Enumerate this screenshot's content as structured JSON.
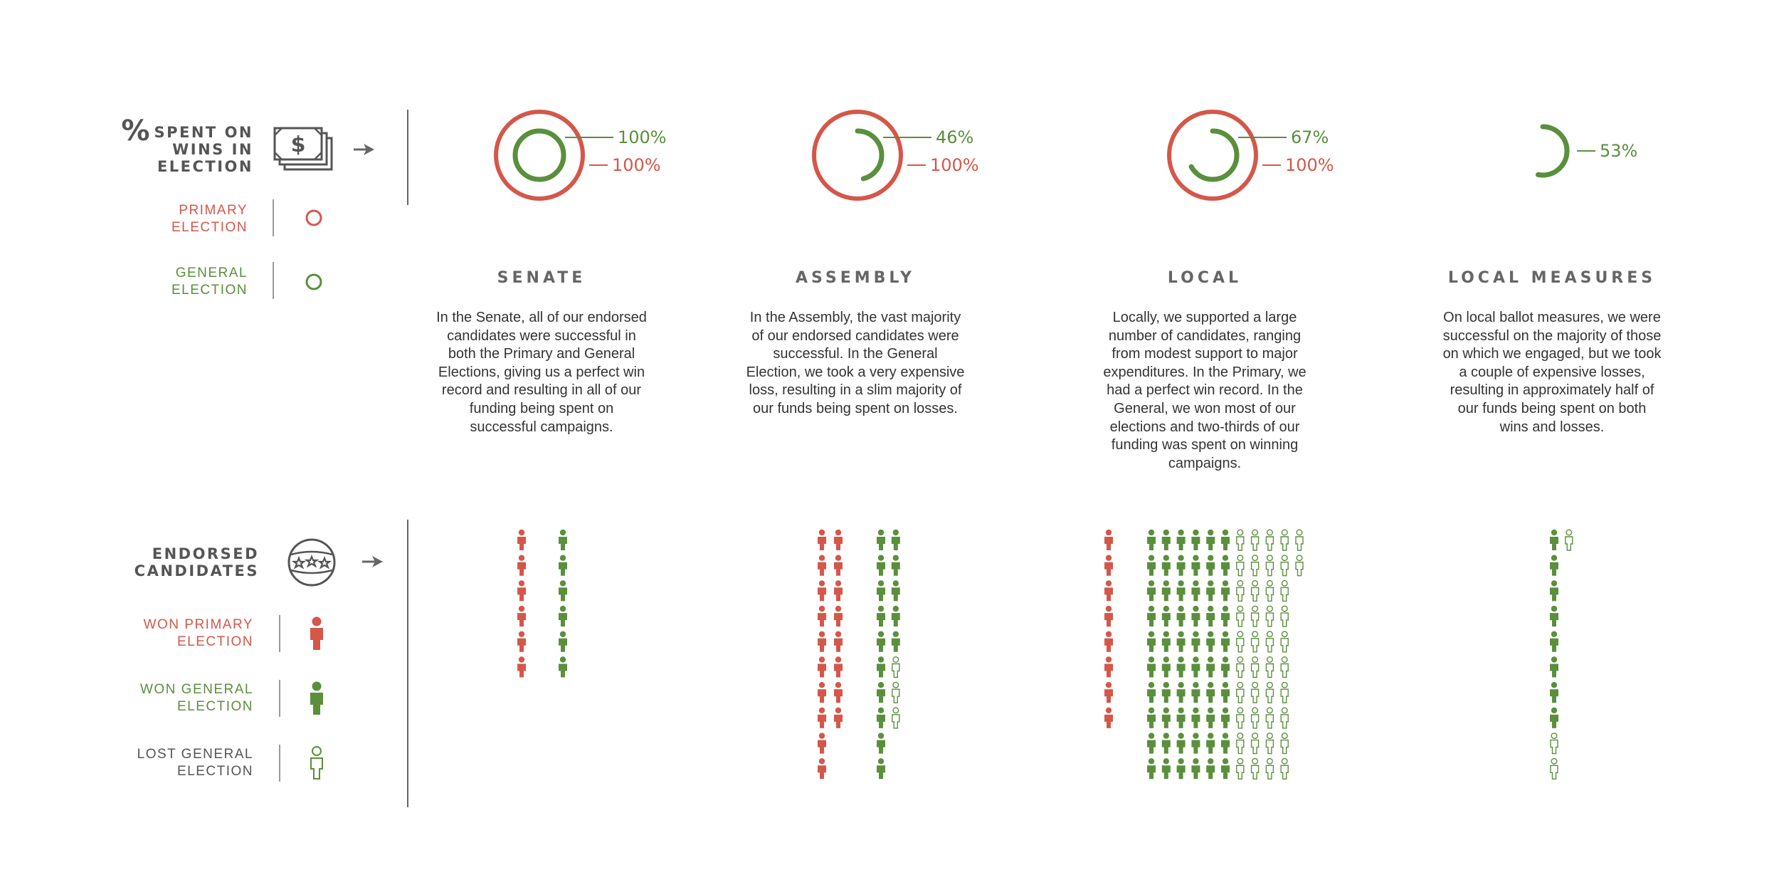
{
  "legend": {
    "spent_heading": [
      "SPENT ON",
      "WINS IN",
      "ELECTION"
    ],
    "spent_symbol": "%",
    "primary_election": [
      "PRIMARY",
      "ELECTION"
    ],
    "general_election": [
      "GENERAL",
      "ELECTION"
    ],
    "endorsed_heading": [
      "ENDORSED",
      "CANDIDATES"
    ],
    "won_primary": [
      "WON PRIMARY",
      "ELECTION"
    ],
    "won_general": [
      "WON GENERAL",
      "ELECTION"
    ],
    "lost_general": [
      "LOST GENERAL",
      "ELECTION"
    ]
  },
  "colors": {
    "primary": "#d4574a",
    "general": "#5a8f3c",
    "text": "#555555"
  },
  "icons": [
    "money-stack-icon",
    "arrow-right-icon",
    "ballot-stars-icon",
    "person-icon"
  ],
  "chart_data": [
    {
      "type": "radial",
      "title": "",
      "categories": [
        "SENATE",
        "ASSEMBLY",
        "LOCAL",
        "LOCAL MEASURES"
      ],
      "series": [
        {
          "name": "GENERAL ELECTION",
          "values": [
            100,
            46,
            67,
            53
          ]
        },
        {
          "name": "PRIMARY ELECTION",
          "values": [
            100,
            100,
            100,
            null
          ]
        }
      ],
      "labels": {
        "general": [
          "100%",
          "46%",
          "67%",
          "53%"
        ],
        "primary": [
          "100%",
          "100%",
          "100%",
          ""
        ]
      },
      "unit": "%"
    },
    {
      "type": "pictogram",
      "title": "",
      "categories": [
        "SENATE",
        "ASSEMBLY",
        "LOCAL",
        "LOCAL MEASURES"
      ],
      "series": [
        {
          "name": "WON PRIMARY ELECTION",
          "values": [
            6,
            18,
            8,
            0
          ]
        },
        {
          "name": "WON GENERAL ELECTION",
          "values": [
            6,
            15,
            60,
            8
          ]
        },
        {
          "name": "LOST GENERAL ELECTION",
          "values": [
            0,
            3,
            42,
            3
          ]
        }
      ]
    }
  ],
  "columns": [
    {
      "title": "SENATE",
      "description": "In the Senate, all of our endorsed candidates were successful in both the Primary and General Elections, giving us a perfect win record and resulting in all of our funding being spent on successful campaigns."
    },
    {
      "title": "ASSEMBLY",
      "description": "In the Assembly, the vast majority of our endorsed candidates were successful. In the General Election, we took a very expensive loss, resulting in a slim majority of our funds being spent on losses."
    },
    {
      "title": "LOCAL",
      "description": "Locally, we supported a large number of candidates, ranging from modest support to major expenditures. In the Primary, we had a perfect win record. In the General, we won most of our elections and two-thirds of our funding was spent on winning campaigns."
    },
    {
      "title": "LOCAL MEASURES",
      "description": "On local ballot measures, we were successful on the majority of those on which we engaged, but we took a couple of expensive losses, resulting in approximately half of our funds being spent on both wins and losses."
    }
  ]
}
